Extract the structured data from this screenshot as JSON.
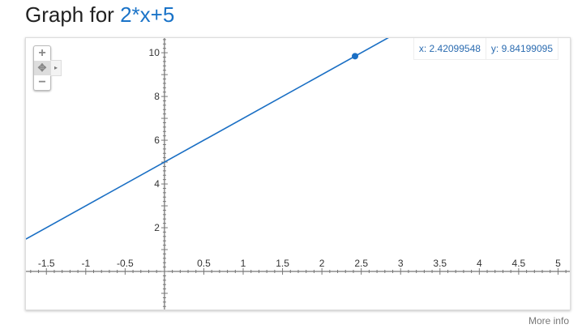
{
  "title": {
    "prefix": "Graph for ",
    "function": "2*x+5"
  },
  "readout": {
    "x": "x: 2.42099548",
    "y": "y: 9.84199095"
  },
  "controls": {
    "zoom_in": "+",
    "pan": "✥",
    "zoom_out": "−",
    "expand": "▸"
  },
  "more_info": "More info",
  "chart_data": {
    "type": "line",
    "function": "2*x+5",
    "slope": 2,
    "intercept": 5,
    "xlim": [
      -1.76,
      5.15
    ],
    "ylim": [
      -1.74,
      10.67
    ],
    "x_ticks": [
      -1.5,
      -1,
      -0.5,
      0.5,
      1,
      1.5,
      2,
      2.5,
      3,
      3.5,
      4,
      4.5,
      5
    ],
    "x_tick_labels": [
      "-1.5",
      "-1",
      "-0.5",
      "0.5",
      "1",
      "1.5",
      "2",
      "2.5",
      "3",
      "3.5",
      "4",
      "4.5",
      "5"
    ],
    "y_ticks": [
      2,
      4,
      6,
      8,
      10
    ],
    "y_tick_labels": [
      "2",
      "4",
      "6",
      "8",
      "10"
    ],
    "highlight_point": {
      "x": 2.42099548,
      "y": 9.84199095
    },
    "line_color": "#1a6fc4",
    "grid": false
  }
}
